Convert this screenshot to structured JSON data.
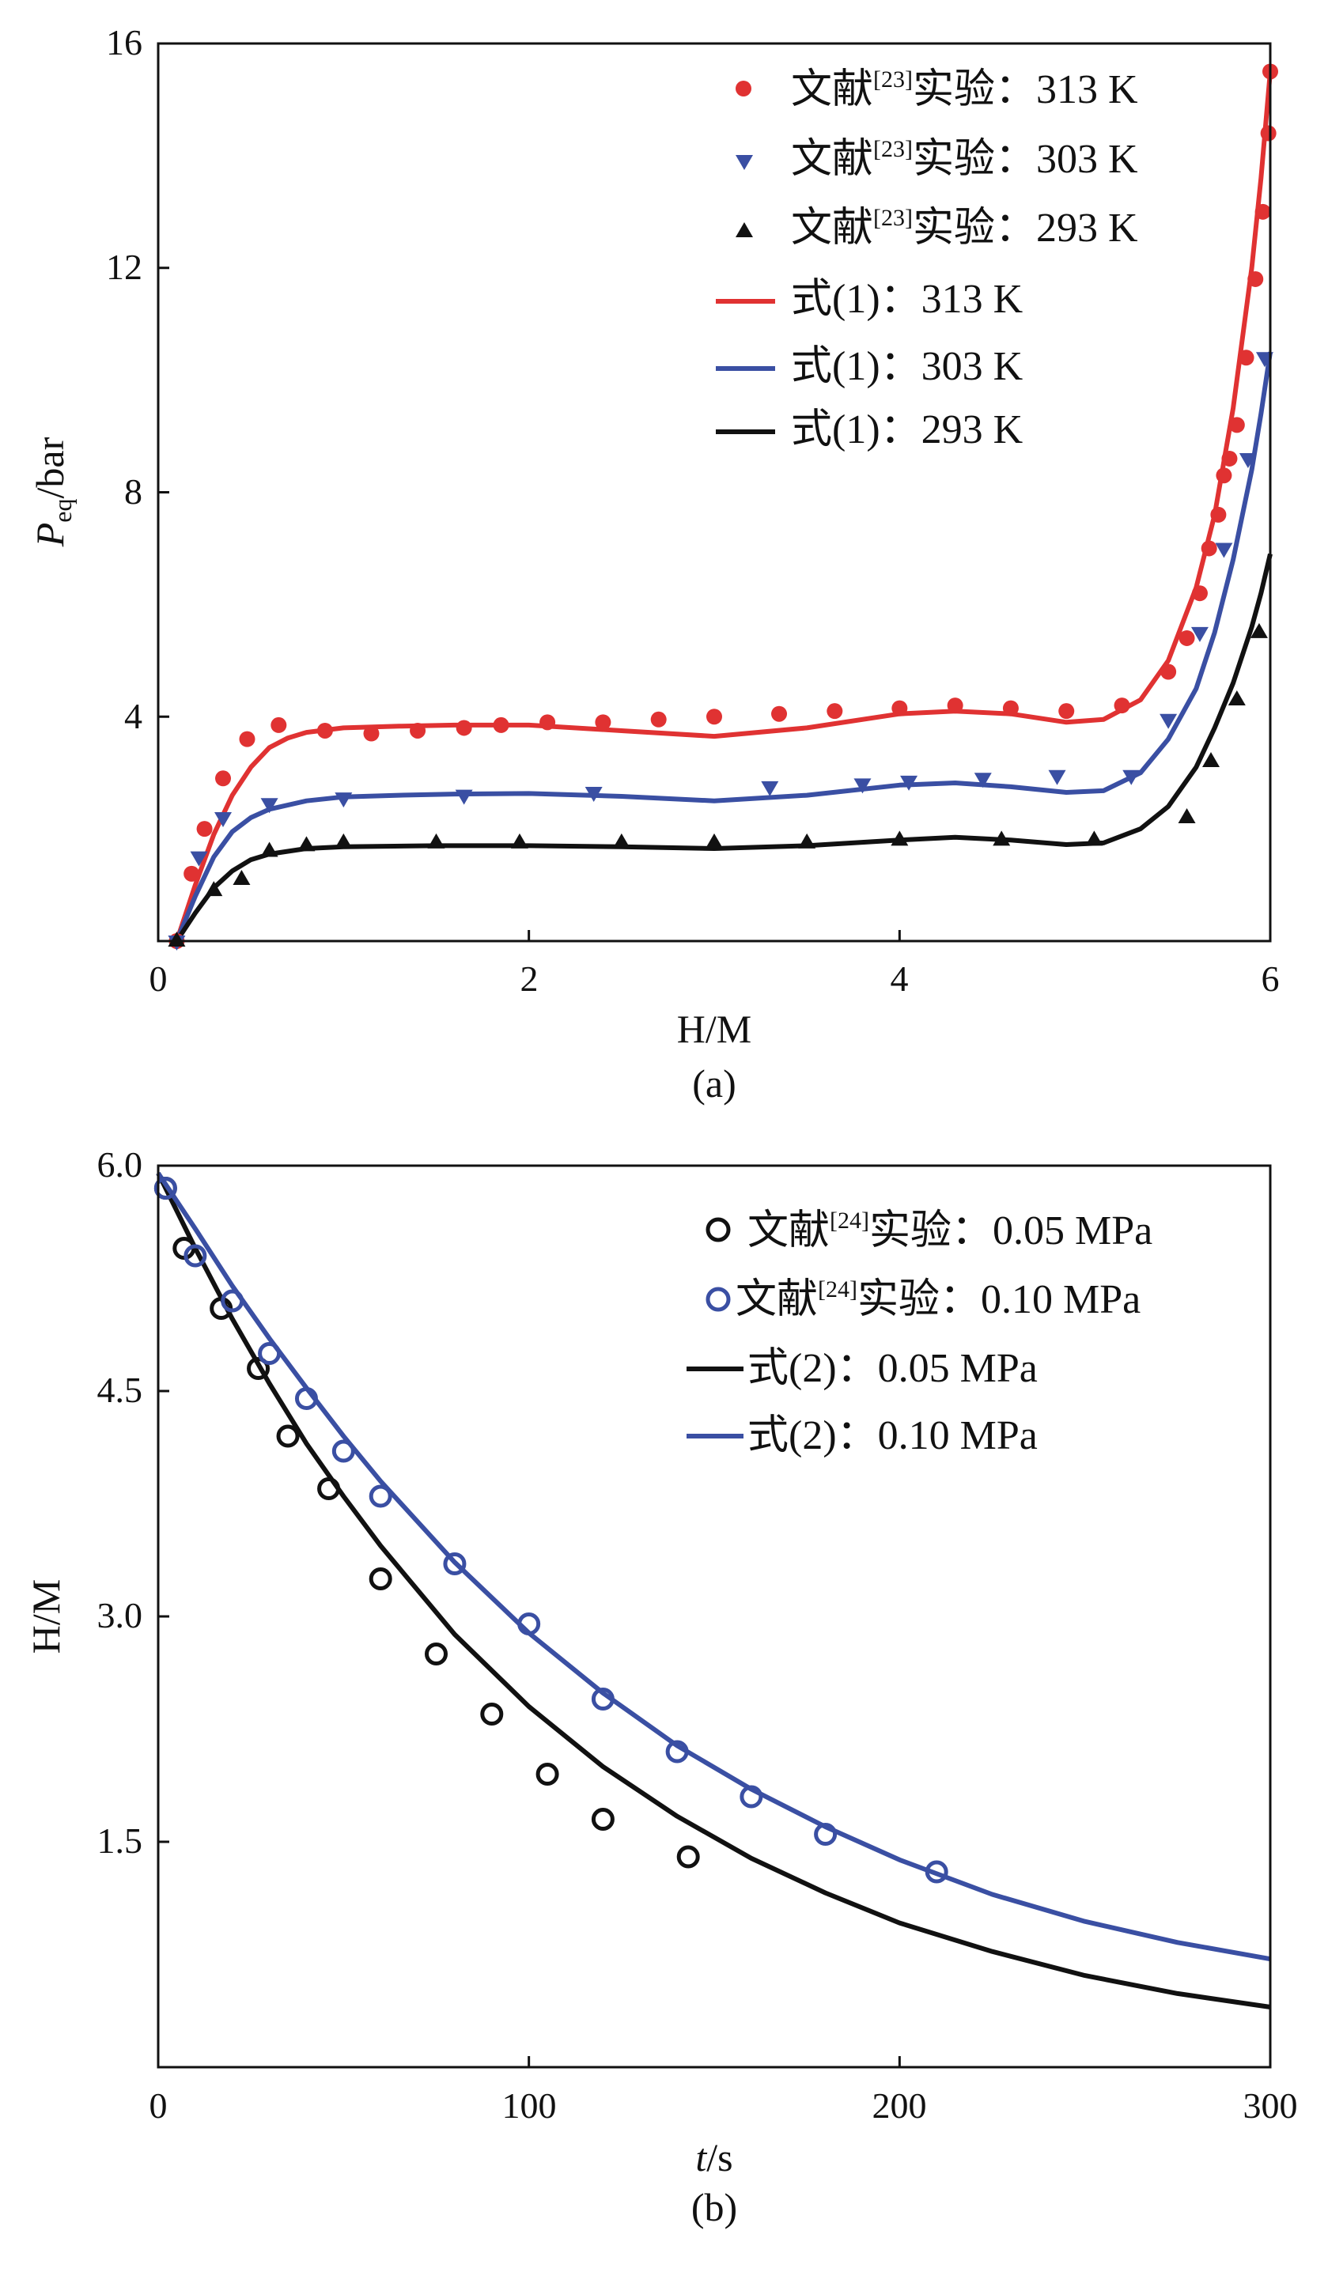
{
  "chart_data": [
    {
      "type": "scatter",
      "caption": "(a)",
      "xlabel": "H/M",
      "ylabel_main": "P",
      "ylabel_sub": "eq",
      "ylabel_tail": "/bar",
      "xlim": [
        0,
        6
      ],
      "ylim": [
        0,
        16
      ],
      "x_ticks": [
        0,
        2,
        4,
        6
      ],
      "x_tick_labels": [
        "0",
        "2",
        "4",
        "6"
      ],
      "y_ticks": [
        4,
        8,
        12,
        16
      ],
      "y_tick_labels": [
        "4",
        "8",
        "12",
        "16"
      ],
      "legend_position": "top-right",
      "series": [
        {
          "name": "文献[23]实验：313 K",
          "legend_prefix": "文献",
          "legend_sup": "[23]",
          "legend_suffix": "实验：313 K",
          "kind": "points",
          "marker": "circle-filled",
          "color": "#e03232",
          "x": [
            0.1,
            0.18,
            0.25,
            0.35,
            0.48,
            0.65,
            0.9,
            1.15,
            1.4,
            1.65,
            1.85,
            2.1,
            2.4,
            2.7,
            3.0,
            3.35,
            3.65,
            4.0,
            4.3,
            4.6,
            4.9,
            5.2,
            5.45,
            5.55,
            5.62,
            5.67,
            5.72,
            5.75,
            5.78,
            5.82,
            5.87,
            5.92,
            5.96,
            5.99,
            6.0
          ],
          "y": [
            0.0,
            1.2,
            2.0,
            2.9,
            3.6,
            3.85,
            3.75,
            3.7,
            3.75,
            3.8,
            3.85,
            3.9,
            3.9,
            3.95,
            4.0,
            4.05,
            4.1,
            4.15,
            4.2,
            4.15,
            4.1,
            4.2,
            4.8,
            5.4,
            6.2,
            7.0,
            7.6,
            8.3,
            8.6,
            9.2,
            10.4,
            11.8,
            13.0,
            14.4,
            15.5
          ]
        },
        {
          "name": "文献[23]实验：303 K",
          "legend_prefix": "文献",
          "legend_sup": "[23]",
          "legend_suffix": "实验：303 K",
          "kind": "points",
          "marker": "triangle-down",
          "color": "#3a4fa3",
          "x": [
            0.1,
            0.22,
            0.35,
            0.6,
            1.0,
            1.65,
            2.35,
            3.3,
            3.8,
            4.05,
            4.45,
            4.85,
            5.25,
            5.45,
            5.62,
            5.75,
            5.88,
            5.97
          ],
          "y": [
            0.0,
            1.5,
            2.2,
            2.45,
            2.55,
            2.6,
            2.65,
            2.75,
            2.8,
            2.85,
            2.9,
            2.95,
            2.95,
            3.95,
            5.5,
            7.0,
            8.6,
            10.4
          ]
        },
        {
          "name": "文献[23]实验：293 K",
          "legend_prefix": "文献",
          "legend_sup": "[23]",
          "legend_suffix": "实验：293 K",
          "kind": "points",
          "marker": "triangle-up",
          "color": "#111111",
          "x": [
            0.1,
            0.3,
            0.45,
            0.6,
            0.8,
            1.0,
            1.5,
            1.95,
            2.5,
            3.0,
            3.5,
            4.0,
            4.55,
            5.05,
            5.55,
            5.68,
            5.82,
            5.94
          ],
          "y": [
            0.0,
            0.9,
            1.1,
            1.6,
            1.7,
            1.75,
            1.75,
            1.75,
            1.75,
            1.75,
            1.75,
            1.8,
            1.8,
            1.8,
            2.2,
            3.2,
            4.3,
            5.5
          ]
        },
        {
          "name": "式(1)：313 K",
          "legend_label": "式(1)：313 K",
          "kind": "line",
          "color": "#e03232",
          "x": [
            0.1,
            0.2,
            0.3,
            0.4,
            0.5,
            0.6,
            0.7,
            0.8,
            1.0,
            1.3,
            1.6,
            2.0,
            2.5,
            3.0,
            3.5,
            4.0,
            4.3,
            4.6,
            4.9,
            5.1,
            5.3,
            5.45,
            5.6,
            5.7,
            5.8,
            5.9,
            5.95,
            6.0
          ],
          "y": [
            0.0,
            1.0,
            1.9,
            2.6,
            3.1,
            3.45,
            3.62,
            3.72,
            3.8,
            3.83,
            3.85,
            3.85,
            3.75,
            3.65,
            3.8,
            4.05,
            4.1,
            4.05,
            3.9,
            3.95,
            4.3,
            5.0,
            6.3,
            7.6,
            9.5,
            12.0,
            13.6,
            15.5
          ]
        },
        {
          "name": "式(1)：303 K",
          "legend_label": "式(1)：303 K",
          "kind": "line",
          "color": "#3a4fa3",
          "x": [
            0.1,
            0.2,
            0.3,
            0.4,
            0.5,
            0.6,
            0.8,
            1.0,
            1.3,
            1.6,
            2.0,
            2.5,
            3.0,
            3.5,
            4.0,
            4.3,
            4.6,
            4.9,
            5.1,
            5.3,
            5.45,
            5.6,
            5.7,
            5.8,
            5.9,
            5.95,
            6.0
          ],
          "y": [
            0.0,
            0.8,
            1.5,
            1.95,
            2.2,
            2.35,
            2.5,
            2.57,
            2.6,
            2.62,
            2.63,
            2.58,
            2.5,
            2.6,
            2.78,
            2.82,
            2.75,
            2.65,
            2.68,
            3.0,
            3.6,
            4.5,
            5.5,
            6.8,
            8.4,
            9.4,
            10.5
          ]
        },
        {
          "name": "式(1)：293 K",
          "legend_label": "式(1)：293 K",
          "kind": "line",
          "color": "#111111",
          "x": [
            0.1,
            0.2,
            0.3,
            0.4,
            0.5,
            0.6,
            0.8,
            1.0,
            1.5,
            2.0,
            2.5,
            3.0,
            3.5,
            4.0,
            4.3,
            4.6,
            4.9,
            5.1,
            5.3,
            5.45,
            5.6,
            5.7,
            5.8,
            5.9,
            5.95,
            6.0
          ],
          "y": [
            0.0,
            0.5,
            0.95,
            1.25,
            1.45,
            1.55,
            1.65,
            1.68,
            1.7,
            1.7,
            1.68,
            1.65,
            1.7,
            1.8,
            1.85,
            1.8,
            1.72,
            1.75,
            2.0,
            2.4,
            3.1,
            3.8,
            4.6,
            5.6,
            6.2,
            6.9
          ]
        }
      ]
    },
    {
      "type": "scatter",
      "caption": "(b)",
      "xlabel_italic": "t",
      "xlabel_tail": "/s",
      "ylabel": "H/M",
      "xlim": [
        0,
        300
      ],
      "ylim": [
        0,
        6.0
      ],
      "x_ticks": [
        0,
        100,
        200,
        300
      ],
      "x_tick_labels": [
        "0",
        "100",
        "200",
        "300"
      ],
      "y_ticks": [
        1.5,
        3.0,
        4.5,
        6.0
      ],
      "y_tick_labels": [
        "1.5",
        "3.0",
        "4.5",
        "6.0"
      ],
      "legend_position": "top-right",
      "series": [
        {
          "name": "文献[24]实验：0.05 MPa",
          "legend_prefix": "文献",
          "legend_sup": "[24]",
          "legend_suffix": "实验：0.05 MPa",
          "kind": "points",
          "marker": "circle-open",
          "color": "#111111",
          "x": [
            2,
            7,
            17,
            27,
            35,
            46,
            60,
            75,
            90,
            105,
            120,
            143
          ],
          "y": [
            5.85,
            5.45,
            5.05,
            4.65,
            4.2,
            3.85,
            3.25,
            2.75,
            2.35,
            1.95,
            1.65,
            1.4
          ]
        },
        {
          "name": "文献[24]实验：0.10 MPa",
          "legend_prefix": "文献",
          "legend_sup": "[24]",
          "legend_suffix": "实验：0.10 MPa",
          "kind": "points",
          "marker": "circle-open",
          "color": "#3a4fa3",
          "x": [
            2,
            10,
            20,
            30,
            40,
            50,
            60,
            80,
            100,
            120,
            140,
            160,
            180,
            210
          ],
          "y": [
            5.85,
            5.4,
            5.1,
            4.75,
            4.45,
            4.1,
            3.8,
            3.35,
            2.95,
            2.45,
            2.1,
            1.8,
            1.55,
            1.3
          ]
        },
        {
          "name": "式(2)：0.05 MPa",
          "legend_label": "式(2)：0.05 MPa",
          "kind": "line",
          "color": "#111111",
          "x": [
            0,
            10,
            20,
            30,
            40,
            50,
            60,
            80,
            100,
            120,
            140,
            160,
            180,
            200,
            225,
            250,
            275,
            300
          ],
          "y": [
            5.95,
            5.45,
            4.98,
            4.55,
            4.15,
            3.8,
            3.47,
            2.88,
            2.4,
            2.0,
            1.67,
            1.39,
            1.16,
            0.96,
            0.77,
            0.61,
            0.49,
            0.4
          ]
        },
        {
          "name": "式(2)：0.10 MPa",
          "legend_label": "式(2)：0.10 MPa",
          "kind": "line",
          "color": "#3a4fa3",
          "x": [
            0,
            10,
            20,
            30,
            40,
            50,
            60,
            80,
            100,
            120,
            140,
            160,
            180,
            200,
            225,
            250,
            275,
            300
          ],
          "y": [
            5.95,
            5.58,
            5.2,
            4.85,
            4.52,
            4.2,
            3.9,
            3.36,
            2.89,
            2.49,
            2.14,
            1.85,
            1.6,
            1.38,
            1.15,
            0.97,
            0.83,
            0.72
          ]
        }
      ]
    }
  ]
}
